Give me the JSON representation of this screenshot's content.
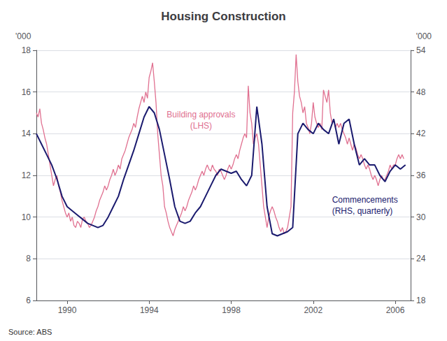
{
  "chart_data": {
    "type": "line",
    "title": "Housing Construction",
    "ylabel": "'000",
    "y2label": "'000",
    "source": "Source: ABS",
    "xlim": [
      1988.5,
      2006.75
    ],
    "xticks": [
      1990,
      1994,
      1998,
      2002,
      2006
    ],
    "ylim": [
      6,
      18
    ],
    "yticks": [
      6,
      8,
      10,
      12,
      14,
      16,
      18
    ],
    "y2lim": [
      18,
      54
    ],
    "y2ticks": [
      18,
      24,
      30,
      36,
      42,
      48,
      54
    ],
    "grid": true,
    "series": [
      {
        "name": "Building approvals\n(LHS)",
        "color": "#e07090",
        "x": [
          1988.5,
          1988.583,
          1988.667,
          1988.75,
          1988.833,
          1988.917,
          1989.0,
          1989.083,
          1989.167,
          1989.25,
          1989.333,
          1989.417,
          1989.5,
          1989.583,
          1989.667,
          1989.75,
          1989.833,
          1989.917,
          1990.0,
          1990.083,
          1990.167,
          1990.25,
          1990.333,
          1990.417,
          1990.5,
          1990.583,
          1990.667,
          1990.75,
          1990.833,
          1990.917,
          1991.0,
          1991.083,
          1991.167,
          1991.25,
          1991.333,
          1991.417,
          1991.5,
          1991.583,
          1991.667,
          1991.75,
          1991.833,
          1991.917,
          1992.0,
          1992.083,
          1992.167,
          1992.25,
          1992.333,
          1992.417,
          1992.5,
          1992.583,
          1992.667,
          1992.75,
          1992.833,
          1992.917,
          1993.0,
          1993.083,
          1993.167,
          1993.25,
          1993.333,
          1993.417,
          1993.5,
          1993.583,
          1993.667,
          1993.75,
          1993.833,
          1993.917,
          1994.0,
          1994.083,
          1994.167,
          1994.25,
          1994.333,
          1994.417,
          1994.5,
          1994.583,
          1994.667,
          1994.75,
          1994.833,
          1994.917,
          1995.0,
          1995.083,
          1995.167,
          1995.25,
          1995.333,
          1995.417,
          1995.5,
          1995.583,
          1995.667,
          1995.75,
          1995.833,
          1995.917,
          1996.0,
          1996.083,
          1996.167,
          1996.25,
          1996.333,
          1996.417,
          1996.5,
          1996.583,
          1996.667,
          1996.75,
          1996.833,
          1996.917,
          1997.0,
          1997.083,
          1997.167,
          1997.25,
          1997.333,
          1997.417,
          1997.5,
          1997.583,
          1997.667,
          1997.75,
          1997.833,
          1997.917,
          1998.0,
          1998.083,
          1998.167,
          1998.25,
          1998.333,
          1998.417,
          1998.5,
          1998.583,
          1998.667,
          1998.75,
          1998.833,
          1998.917,
          1999.0,
          1999.083,
          1999.167,
          1999.25,
          1999.333,
          1999.417,
          1999.5,
          1999.583,
          1999.667,
          1999.75,
          1999.833,
          1999.917,
          2000.0,
          2000.083,
          2000.167,
          2000.25,
          2000.333,
          2000.417,
          2000.5,
          2000.583,
          2000.667,
          2000.75,
          2000.833,
          2000.917,
          2001.0,
          2001.083,
          2001.167,
          2001.25,
          2001.333,
          2001.417,
          2001.5,
          2001.583,
          2001.667,
          2001.75,
          2001.833,
          2001.917,
          2002.0,
          2002.083,
          2002.167,
          2002.25,
          2002.333,
          2002.417,
          2002.5,
          2002.583,
          2002.667,
          2002.75,
          2002.833,
          2002.917,
          2003.0,
          2003.083,
          2003.167,
          2003.25,
          2003.333,
          2003.417,
          2003.5,
          2003.583,
          2003.667,
          2003.75,
          2003.833,
          2003.917,
          2004.0,
          2004.083,
          2004.167,
          2004.25,
          2004.333,
          2004.417,
          2004.5,
          2004.583,
          2004.667,
          2004.75,
          2004.833,
          2004.917,
          2005.0,
          2005.083,
          2005.167,
          2005.25,
          2005.333,
          2005.417,
          2005.5,
          2005.583,
          2005.667,
          2005.75,
          2005.833,
          2005.917,
          2006.0,
          2006.083,
          2006.167,
          2006.25,
          2006.333,
          2006.417
        ],
        "values": [
          15.0,
          14.8,
          15.2,
          14.5,
          14.2,
          13.8,
          13.5,
          13.0,
          12.5,
          12.0,
          11.5,
          11.8,
          12.0,
          11.5,
          11.2,
          10.8,
          10.5,
          10.2,
          10.0,
          10.2,
          9.8,
          10.0,
          9.6,
          9.5,
          9.8,
          9.7,
          9.5,
          9.9,
          10.0,
          9.8,
          9.7,
          9.5,
          9.6,
          9.8,
          10.0,
          10.3,
          10.5,
          10.8,
          11.0,
          11.2,
          11.5,
          11.3,
          11.5,
          11.8,
          12.0,
          12.3,
          12.0,
          12.2,
          12.5,
          12.3,
          12.8,
          13.0,
          13.2,
          13.5,
          13.8,
          14.0,
          14.2,
          14.5,
          14.3,
          14.8,
          15.2,
          15.5,
          15.8,
          15.5,
          16.0,
          15.7,
          16.7,
          17.0,
          17.4,
          16.5,
          15.5,
          14.0,
          13.0,
          12.0,
          11.5,
          10.5,
          10.2,
          9.8,
          9.5,
          9.3,
          9.1,
          9.4,
          9.6,
          9.8,
          10.0,
          10.2,
          10.5,
          10.3,
          10.5,
          10.8,
          11.0,
          11.2,
          11.5,
          11.3,
          11.5,
          11.8,
          12.0,
          12.2,
          12.0,
          12.3,
          12.5,
          12.3,
          12.2,
          12.5,
          12.3,
          12.2,
          12.0,
          12.3,
          12.2,
          12.0,
          11.8,
          12.0,
          12.3,
          12.5,
          12.3,
          12.5,
          12.8,
          13.0,
          12.8,
          13.2,
          13.5,
          13.8,
          14.0,
          13.8,
          16.3,
          15.0,
          14.5,
          13.5,
          13.8,
          14.0,
          13.5,
          12.5,
          11.5,
          10.5,
          10.0,
          9.5,
          10.0,
          10.3,
          10.5,
          10.3,
          10.0,
          9.8,
          9.5,
          9.3,
          9.5,
          9.2,
          9.3,
          9.5,
          10.0,
          10.5,
          15.0,
          16.0,
          17.8,
          16.5,
          15.8,
          15.5,
          15.0,
          15.3,
          14.5,
          14.3,
          14.0,
          14.5,
          15.5,
          14.8,
          14.5,
          14.3,
          14.5,
          14.2,
          16.1,
          15.8,
          15.5,
          16.1,
          15.0,
          14.5,
          14.7,
          14.3,
          14.5,
          14.3,
          14.5,
          14.2,
          14.0,
          13.8,
          13.5,
          13.8,
          13.5,
          13.2,
          13.5,
          13.3,
          13.0,
          12.8,
          13.0,
          12.8,
          12.5,
          12.3,
          12.5,
          12.3,
          12.0,
          11.8,
          12.0,
          11.8,
          11.5,
          11.8,
          12.0,
          11.8,
          11.8,
          12.0,
          12.2,
          12.5,
          12.3,
          12.5,
          12.5,
          12.8,
          13.0,
          12.8,
          13.0,
          12.8
        ]
      },
      {
        "name": "Commencements\n(RHS, quarterly)",
        "color": "#1a1a6e",
        "axis": "y2",
        "x": [
          1988.5,
          1988.75,
          1989.0,
          1989.25,
          1989.5,
          1989.75,
          1990.0,
          1990.25,
          1990.5,
          1990.75,
          1991.0,
          1991.25,
          1991.5,
          1991.75,
          1992.0,
          1992.25,
          1992.5,
          1992.75,
          1993.0,
          1993.25,
          1993.5,
          1993.75,
          1994.0,
          1994.25,
          1994.5,
          1994.75,
          1995.0,
          1995.25,
          1995.5,
          1995.75,
          1996.0,
          1996.25,
          1996.5,
          1996.75,
          1997.0,
          1997.25,
          1997.5,
          1997.75,
          1998.0,
          1998.25,
          1998.5,
          1998.75,
          1999.0,
          1999.25,
          1999.5,
          1999.75,
          2000.0,
          2000.25,
          2000.5,
          2000.75,
          2001.0,
          2001.25,
          2001.5,
          2001.75,
          2002.0,
          2002.25,
          2002.5,
          2002.75,
          2003.0,
          2003.25,
          2003.5,
          2003.75,
          2004.0,
          2004.25,
          2004.5,
          2004.75,
          2005.0,
          2005.25,
          2005.5,
          2005.75,
          2006.0,
          2006.25,
          2006.5
        ],
        "values": [
          42.0,
          40.5,
          39.0,
          37.5,
          35.5,
          33.0,
          31.5,
          30.9,
          30.3,
          29.7,
          29.1,
          28.8,
          28.5,
          28.8,
          30.0,
          31.5,
          33.0,
          35.4,
          37.5,
          39.6,
          42.0,
          44.4,
          45.9,
          45.0,
          42.6,
          39.0,
          35.4,
          31.5,
          29.4,
          29.1,
          29.4,
          30.6,
          31.5,
          33.0,
          34.5,
          36.0,
          36.9,
          36.6,
          36.3,
          36.6,
          35.4,
          34.5,
          36.0,
          45.9,
          40.5,
          31.5,
          27.6,
          27.3,
          27.6,
          27.9,
          28.5,
          42.0,
          43.5,
          42.6,
          42.0,
          43.5,
          42.6,
          42.0,
          44.1,
          40.5,
          43.5,
          44.1,
          40.5,
          37.5,
          38.4,
          37.5,
          37.5,
          36.0,
          35.1,
          36.6,
          37.5,
          36.9,
          37.5
        ]
      }
    ]
  }
}
